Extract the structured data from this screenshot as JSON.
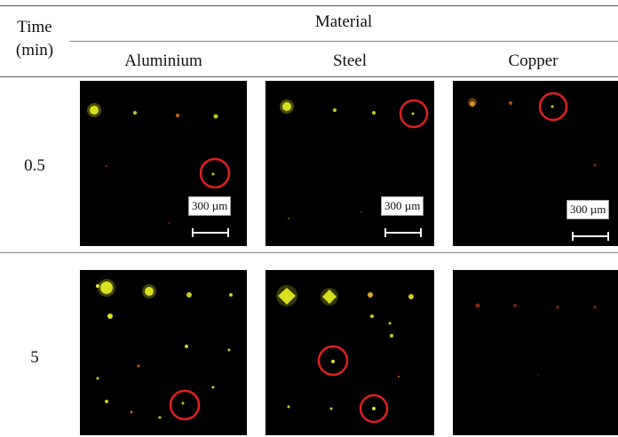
{
  "header": {
    "time_label_line1": "Time",
    "time_label_line2": "(min)",
    "material_label": "Material"
  },
  "columns": [
    {
      "label": "Aluminium"
    },
    {
      "label": "Steel"
    },
    {
      "label": "Copper"
    }
  ],
  "rows": [
    {
      "time": "0.5"
    },
    {
      "time": "5"
    }
  ],
  "scale_bar_label": "300 µm",
  "colors": {
    "background": "#000000",
    "particle_yellow": "#d8e020",
    "particle_orange": "#c86414",
    "circle": "#e02020"
  }
}
